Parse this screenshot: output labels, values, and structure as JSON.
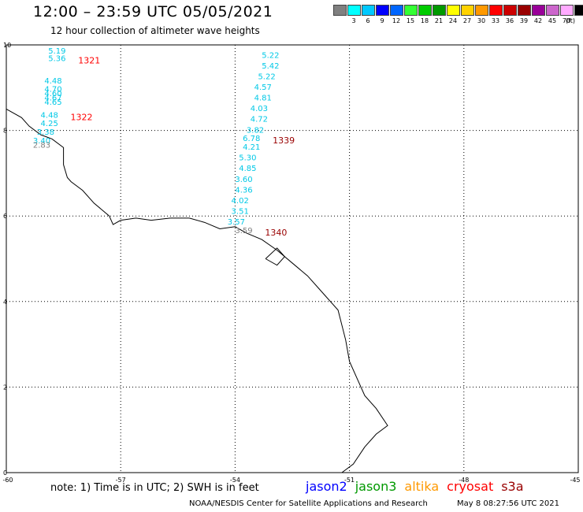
{
  "header": {
    "title": "12:00 – 23:59 UTC 05/05/2021",
    "subtitle": "12 hour collection of altimeter wave heights"
  },
  "legend": {
    "unit": "(ft)",
    "entries": [
      {
        "label": "",
        "color": "#808080"
      },
      {
        "label": "3",
        "color": "#00ffff"
      },
      {
        "label": "6",
        "color": "#00c8ff"
      },
      {
        "label": "9",
        "color": "#0000ff"
      },
      {
        "label": "12",
        "color": "#0066ff"
      },
      {
        "label": "15",
        "color": "#33ff33"
      },
      {
        "label": "18",
        "color": "#00cc00"
      },
      {
        "label": "21",
        "color": "#009900"
      },
      {
        "label": "24",
        "color": "#ffff00"
      },
      {
        "label": "27",
        "color": "#ffd200"
      },
      {
        "label": "30",
        "color": "#ff9900"
      },
      {
        "label": "33",
        "color": "#ff0000"
      },
      {
        "label": "36",
        "color": "#cc0000"
      },
      {
        "label": "39",
        "color": "#990000"
      },
      {
        "label": "42",
        "color": "#990099"
      },
      {
        "label": "45",
        "color": "#cc66cc"
      },
      {
        "label": "70",
        "color": "#ffaaff"
      },
      {
        "label": "",
        "color": "#000000"
      }
    ]
  },
  "map": {
    "lon_range": [
      -60,
      -45
    ],
    "lat_range": [
      0,
      10
    ],
    "x_ticks": [
      "-60",
      "-57",
      "-54",
      "-51",
      "-48",
      "-45"
    ],
    "y_ticks": [
      "0",
      "2",
      "4",
      "6",
      "8",
      "10"
    ],
    "grid_lons": [
      -57,
      -54,
      -51,
      -48
    ],
    "grid_lats": [
      2,
      4,
      6,
      8
    ],
    "coast": [
      [
        -60.0,
        8.5
      ],
      [
        -59.6,
        8.3
      ],
      [
        -59.4,
        8.1
      ],
      [
        -59.1,
        7.9
      ],
      [
        -58.8,
        7.8
      ],
      [
        -58.5,
        7.6
      ],
      [
        -58.5,
        7.2
      ],
      [
        -58.4,
        6.9
      ],
      [
        -58.3,
        6.8
      ],
      [
        -58.0,
        6.6
      ],
      [
        -57.7,
        6.3
      ],
      [
        -57.3,
        6.0
      ],
      [
        -57.2,
        5.8
      ],
      [
        -57.0,
        5.9
      ],
      [
        -56.6,
        5.95
      ],
      [
        -56.2,
        5.9
      ],
      [
        -55.7,
        5.95
      ],
      [
        -55.2,
        5.95
      ],
      [
        -54.8,
        5.85
      ],
      [
        -54.4,
        5.7
      ],
      [
        -54.0,
        5.75
      ],
      [
        -53.7,
        5.6
      ],
      [
        -53.3,
        5.45
      ],
      [
        -52.9,
        5.2
      ],
      [
        -52.5,
        4.9
      ],
      [
        -52.1,
        4.6
      ],
      [
        -51.8,
        4.3
      ],
      [
        -51.6,
        4.1
      ],
      [
        -51.3,
        3.8
      ],
      [
        -51.1,
        3.1
      ],
      [
        -51.0,
        2.6
      ],
      [
        -50.8,
        2.2
      ],
      [
        -50.6,
        1.8
      ],
      [
        -50.3,
        1.5
      ],
      [
        -50.0,
        1.1
      ],
      [
        -50.3,
        0.9
      ],
      [
        -50.6,
        0.6
      ],
      [
        -50.9,
        0.2
      ],
      [
        -51.2,
        0.0
      ]
    ],
    "island": [
      [
        -53.2,
        5.0
      ],
      [
        -52.9,
        5.25
      ],
      [
        -52.7,
        5.05
      ],
      [
        -52.9,
        4.85
      ],
      [
        -53.2,
        5.0
      ]
    ]
  },
  "tracks": [
    {
      "time": "1321",
      "time_color": "#ff0000",
      "points": [
        {
          "lon": -58.9,
          "lat": 9.8,
          "swh": "5.19"
        },
        {
          "lon": -58.9,
          "lat": 9.62,
          "swh": "5.36"
        }
      ]
    },
    {
      "time": "1322",
      "time_color": "#ff0000",
      "points": [
        {
          "lon": -59.0,
          "lat": 9.1,
          "swh": "4.48"
        },
        {
          "lon": -59.0,
          "lat": 8.9,
          "swh": "4.70"
        },
        {
          "lon": -59.0,
          "lat": 8.8,
          "swh": "4.60"
        },
        {
          "lon": -59.0,
          "lat": 8.7,
          "swh": "4.67"
        },
        {
          "lon": -59.0,
          "lat": 8.6,
          "swh": "4.65"
        },
        {
          "lon": -59.1,
          "lat": 8.3,
          "swh": "4.48"
        },
        {
          "lon": -59.1,
          "lat": 8.1,
          "swh": "4.25"
        },
        {
          "lon": -59.2,
          "lat": 7.9,
          "swh": "3.38"
        },
        {
          "lon": -59.3,
          "lat": 7.7,
          "swh": "3.40"
        },
        {
          "lon": -59.3,
          "lat": 7.6,
          "swh": "2.83",
          "gray": true
        }
      ]
    },
    {
      "time": "1339",
      "time_color": "#990000",
      "points": [
        {
          "lon": -53.3,
          "lat": 9.7,
          "swh": "5.22"
        },
        {
          "lon": -53.3,
          "lat": 9.45,
          "swh": "5.42"
        },
        {
          "lon": -53.4,
          "lat": 9.2,
          "swh": "5.22"
        },
        {
          "lon": -53.5,
          "lat": 8.95,
          "swh": "4.57"
        },
        {
          "lon": -53.5,
          "lat": 8.7,
          "swh": "4.81"
        },
        {
          "lon": -53.6,
          "lat": 8.45,
          "swh": "4.03"
        },
        {
          "lon": -53.6,
          "lat": 8.2,
          "swh": "4.72"
        },
        {
          "lon": -53.7,
          "lat": 7.95,
          "swh": "3.82"
        },
        {
          "lon": -53.8,
          "lat": 7.75,
          "swh": "6.78"
        },
        {
          "lon": -53.8,
          "lat": 7.55,
          "swh": "4.21"
        },
        {
          "lon": -53.9,
          "lat": 7.3,
          "swh": "5.30"
        },
        {
          "lon": -53.9,
          "lat": 7.05,
          "swh": "4.85"
        },
        {
          "lon": -54.0,
          "lat": 6.8,
          "swh": "3.60"
        },
        {
          "lon": -54.0,
          "lat": 6.55,
          "swh": "4.36"
        },
        {
          "lon": -54.1,
          "lat": 6.3,
          "swh": "4.02"
        },
        {
          "lon": -54.1,
          "lat": 6.05,
          "swh": "3.51"
        },
        {
          "lon": -54.2,
          "lat": 5.8,
          "swh": "3.57"
        }
      ]
    },
    {
      "time": "1340",
      "time_color": "#990000",
      "points": [
        {
          "lon": -54.0,
          "lat": 5.6,
          "swh": "3.59",
          "gray": true
        }
      ]
    }
  ],
  "footer": {
    "note": "note:  1) Time is in UTC;  2) SWH is in feet",
    "missions": [
      {
        "name": "jason2",
        "color": "#0000ff"
      },
      {
        "name": "jason3",
        "color": "#009900"
      },
      {
        "name": "altika",
        "color": "#ff9900"
      },
      {
        "name": "cryosat",
        "color": "#ff0000"
      },
      {
        "name": "s3a",
        "color": "#990000"
      }
    ],
    "credit": "NOAA/NESDIS Center for Satellite Applications and Research",
    "generated": "May  8 08:27:56 UTC 2021"
  }
}
